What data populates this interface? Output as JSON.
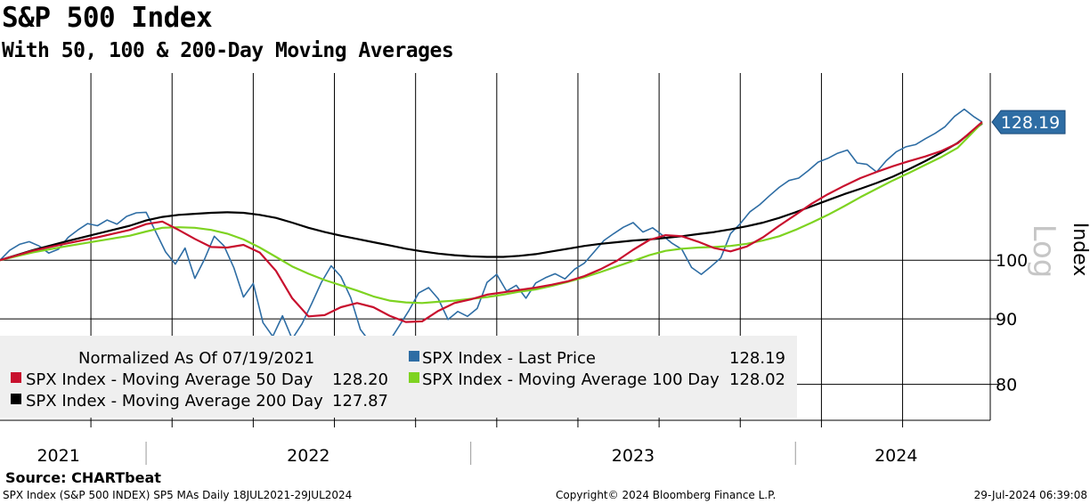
{
  "chart_data": {
    "type": "line",
    "title": "S&P 500 Index",
    "subtitle": "With 50, 100 & 200-Day Moving Averages",
    "scale": "log",
    "ylabel": "Index",
    "scale_label": "Log",
    "ylim": [
      75,
      140
    ],
    "y_ticks": [
      80,
      90,
      100
    ],
    "x_range": [
      "2021-07-19",
      "2024-07-29"
    ],
    "year_labels": [
      {
        "label": "2021",
        "x": 2021.73
      },
      {
        "label": "2022",
        "x": 2022.5
      },
      {
        "label": "2023",
        "x": 2023.5
      },
      {
        "label": "2024",
        "x": 2024.31
      }
    ],
    "year_dividers": [
      2022.0,
      2023.0,
      2024.0
    ],
    "month_gridlines": [
      2021.83,
      2022.08,
      2022.33,
      2022.58,
      2022.83,
      2023.08,
      2023.33,
      2023.58,
      2023.83,
      2024.08,
      2024.33
    ],
    "current_value_label": "128.19",
    "legend": {
      "header": "Normalized As Of 07/19/2021",
      "entries": [
        {
          "name": "SPX Index - Last Price",
          "value": "128.19",
          "color": "#2e6da4"
        },
        {
          "name": "SPX Index - Moving Average 50 Day",
          "value": "128.20",
          "color": "#c8102e"
        },
        {
          "name": "SPX Index - Moving Average 100 Day",
          "value": "128.02",
          "color": "#7ed321"
        },
        {
          "name": "SPX Index - Moving Average 200 Day",
          "value": "127.87",
          "color": "#000000"
        }
      ]
    },
    "series": [
      {
        "name": "SPX Index - Last Price",
        "color": "#2e6da4",
        "x": [
          2021.55,
          2021.58,
          2021.61,
          2021.64,
          2021.67,
          2021.7,
          2021.73,
          2021.76,
          2021.79,
          2021.82,
          2021.85,
          2021.88,
          2021.91,
          2021.94,
          2021.97,
          2022.0,
          2022.03,
          2022.06,
          2022.09,
          2022.12,
          2022.15,
          2022.18,
          2022.21,
          2022.24,
          2022.27,
          2022.3,
          2022.33,
          2022.36,
          2022.39,
          2022.42,
          2022.45,
          2022.48,
          2022.51,
          2022.54,
          2022.57,
          2022.6,
          2022.63,
          2022.66,
          2022.69,
          2022.72,
          2022.75,
          2022.78,
          2022.81,
          2022.84,
          2022.87,
          2022.9,
          2022.93,
          2022.96,
          2022.99,
          2023.02,
          2023.05,
          2023.08,
          2023.11,
          2023.14,
          2023.17,
          2023.2,
          2023.23,
          2023.26,
          2023.29,
          2023.32,
          2023.35,
          2023.38,
          2023.41,
          2023.44,
          2023.47,
          2023.5,
          2023.53,
          2023.56,
          2023.59,
          2023.62,
          2023.65,
          2023.68,
          2023.71,
          2023.74,
          2023.77,
          2023.8,
          2023.83,
          2023.86,
          2023.89,
          2023.92,
          2023.95,
          2023.98,
          2024.01,
          2024.04,
          2024.07,
          2024.1,
          2024.13,
          2024.16,
          2024.19,
          2024.22,
          2024.25,
          2024.28,
          2024.31,
          2024.34,
          2024.37,
          2024.4,
          2024.43,
          2024.46,
          2024.49,
          2024.52,
          2024.55,
          2024.575
        ],
        "values": [
          100.0,
          101.8,
          102.9,
          103.4,
          102.6,
          101.3,
          102.0,
          104.2,
          105.6,
          106.8,
          106.4,
          107.5,
          106.7,
          108.2,
          108.9,
          109.0,
          105.2,
          101.5,
          99.3,
          102.2,
          96.8,
          100.2,
          104.4,
          102.6,
          98.7,
          93.6,
          95.9,
          89.4,
          87.2,
          90.5,
          86.8,
          89.2,
          92.5,
          96.1,
          99.0,
          97.1,
          93.5,
          88.3,
          86.3,
          83.6,
          86.5,
          88.9,
          91.4,
          94.3,
          95.2,
          93.3,
          89.9,
          91.2,
          90.4,
          91.7,
          96.1,
          97.5,
          94.6,
          95.6,
          93.4,
          96.0,
          96.9,
          97.6,
          96.7,
          98.4,
          99.5,
          101.5,
          103.6,
          104.9,
          106.1,
          107.0,
          105.2,
          106.0,
          104.6,
          103.1,
          102.0,
          98.7,
          97.5,
          98.9,
          100.4,
          104.9,
          106.8,
          109.1,
          110.5,
          112.3,
          114.0,
          115.4,
          115.9,
          117.5,
          119.3,
          120.1,
          121.2,
          121.9,
          119.1,
          118.8,
          117.2,
          119.6,
          121.5,
          122.6,
          123.1,
          124.4,
          125.6,
          127.1,
          129.5,
          131.2,
          129.4,
          128.19
        ]
      },
      {
        "name": "SPX Index - Moving Average 50 Day",
        "color": "#c8102e",
        "x": [
          2021.55,
          2021.65,
          2021.75,
          2021.85,
          2021.95,
          2022.0,
          2022.05,
          2022.1,
          2022.15,
          2022.2,
          2022.25,
          2022.3,
          2022.35,
          2022.4,
          2022.45,
          2022.5,
          2022.55,
          2022.6,
          2022.65,
          2022.7,
          2022.75,
          2022.8,
          2022.85,
          2022.9,
          2022.95,
          2023.0,
          2023.05,
          2023.1,
          2023.15,
          2023.2,
          2023.25,
          2023.3,
          2023.35,
          2023.4,
          2023.45,
          2023.5,
          2023.55,
          2023.6,
          2023.65,
          2023.7,
          2023.75,
          2023.8,
          2023.85,
          2023.9,
          2023.95,
          2024.0,
          2024.05,
          2024.1,
          2024.15,
          2024.2,
          2024.25,
          2024.3,
          2024.35,
          2024.4,
          2024.45,
          2024.5,
          2024.575
        ],
        "values": [
          100.0,
          101.7,
          103.0,
          104.2,
          105.6,
          106.7,
          107.2,
          105.6,
          103.9,
          102.4,
          102.3,
          102.8,
          101.4,
          98.1,
          93.4,
          90.4,
          90.6,
          91.9,
          92.6,
          91.9,
          90.5,
          89.5,
          89.6,
          91.3,
          92.6,
          93.2,
          94.0,
          94.4,
          94.8,
          95.2,
          95.7,
          96.3,
          97.2,
          98.4,
          99.9,
          101.9,
          103.7,
          104.6,
          104.4,
          103.4,
          102.2,
          101.6,
          102.5,
          104.2,
          106.4,
          108.5,
          110.7,
          112.6,
          114.3,
          115.9,
          117.2,
          118.4,
          119.5,
          120.5,
          121.7,
          123.4,
          128.2
        ]
      },
      {
        "name": "SPX Index - Moving Average 100 Day",
        "color": "#7ed321",
        "x": [
          2021.55,
          2021.65,
          2021.75,
          2021.85,
          2021.95,
          2022.0,
          2022.05,
          2022.1,
          2022.15,
          2022.2,
          2022.25,
          2022.3,
          2022.35,
          2022.4,
          2022.45,
          2022.5,
          2022.55,
          2022.6,
          2022.65,
          2022.7,
          2022.75,
          2022.8,
          2022.85,
          2022.9,
          2022.95,
          2023.0,
          2023.05,
          2023.1,
          2023.15,
          2023.2,
          2023.25,
          2023.3,
          2023.35,
          2023.4,
          2023.45,
          2023.5,
          2023.55,
          2023.6,
          2023.65,
          2023.7,
          2023.75,
          2023.8,
          2023.85,
          2023.9,
          2023.95,
          2024.0,
          2024.05,
          2024.1,
          2024.15,
          2024.2,
          2024.25,
          2024.3,
          2024.35,
          2024.4,
          2024.45,
          2024.5,
          2024.575
        ],
        "values": [
          100.0,
          101.4,
          102.5,
          103.5,
          104.5,
          105.3,
          106.0,
          106.1,
          106.0,
          105.6,
          104.9,
          103.8,
          102.3,
          100.6,
          98.9,
          97.6,
          96.5,
          95.6,
          94.7,
          93.7,
          93.0,
          92.7,
          92.6,
          92.8,
          93.0,
          93.3,
          93.6,
          94.0,
          94.5,
          94.9,
          95.5,
          96.2,
          97.0,
          97.9,
          98.9,
          99.9,
          100.9,
          101.7,
          102.1,
          102.3,
          102.4,
          102.6,
          103.0,
          103.6,
          104.4,
          105.6,
          107.0,
          108.5,
          110.2,
          112.0,
          113.7,
          115.4,
          117.0,
          118.7,
          120.4,
          122.4,
          128.02
        ]
      },
      {
        "name": "SPX Index - Moving Average 200 Day",
        "color": "#000000",
        "x": [
          2021.55,
          2021.65,
          2021.75,
          2021.85,
          2021.95,
          2022.0,
          2022.05,
          2022.1,
          2022.15,
          2022.2,
          2022.25,
          2022.3,
          2022.35,
          2022.4,
          2022.45,
          2022.5,
          2022.55,
          2022.6,
          2022.65,
          2022.7,
          2022.75,
          2022.8,
          2022.85,
          2022.9,
          2022.95,
          2023.0,
          2023.05,
          2023.1,
          2023.15,
          2023.2,
          2023.25,
          2023.3,
          2023.35,
          2023.4,
          2023.45,
          2023.5,
          2023.55,
          2023.6,
          2023.65,
          2023.7,
          2023.75,
          2023.8,
          2023.85,
          2023.9,
          2023.95,
          2024.0,
          2024.05,
          2024.1,
          2024.15,
          2024.2,
          2024.25,
          2024.3,
          2024.35,
          2024.4,
          2024.45,
          2024.5,
          2024.575
        ],
        "values": [
          100.0,
          101.8,
          103.4,
          104.9,
          106.4,
          107.4,
          108.1,
          108.5,
          108.7,
          108.9,
          109.0,
          108.9,
          108.5,
          107.9,
          107.0,
          106.0,
          105.2,
          104.5,
          103.9,
          103.3,
          102.7,
          102.1,
          101.6,
          101.2,
          100.9,
          100.7,
          100.6,
          100.6,
          100.8,
          101.1,
          101.6,
          102.1,
          102.6,
          103.0,
          103.3,
          103.6,
          103.8,
          104.1,
          104.4,
          104.8,
          105.2,
          105.7,
          106.3,
          107.0,
          107.9,
          109.0,
          110.2,
          111.4,
          112.6,
          113.7,
          114.9,
          116.2,
          117.8,
          119.5,
          121.4,
          123.5,
          127.87
        ]
      }
    ]
  },
  "source_label": "Source:",
  "source_value": "CHARTbeat",
  "footer": {
    "left": "SPX Index (S&P 500 INDEX) SP5 MAs  Daily 18JUL2021-29JUL2024",
    "middle": "Copyright© 2024 Bloomberg Finance L.P.",
    "right": "29-Jul-2024 06:39:08"
  }
}
